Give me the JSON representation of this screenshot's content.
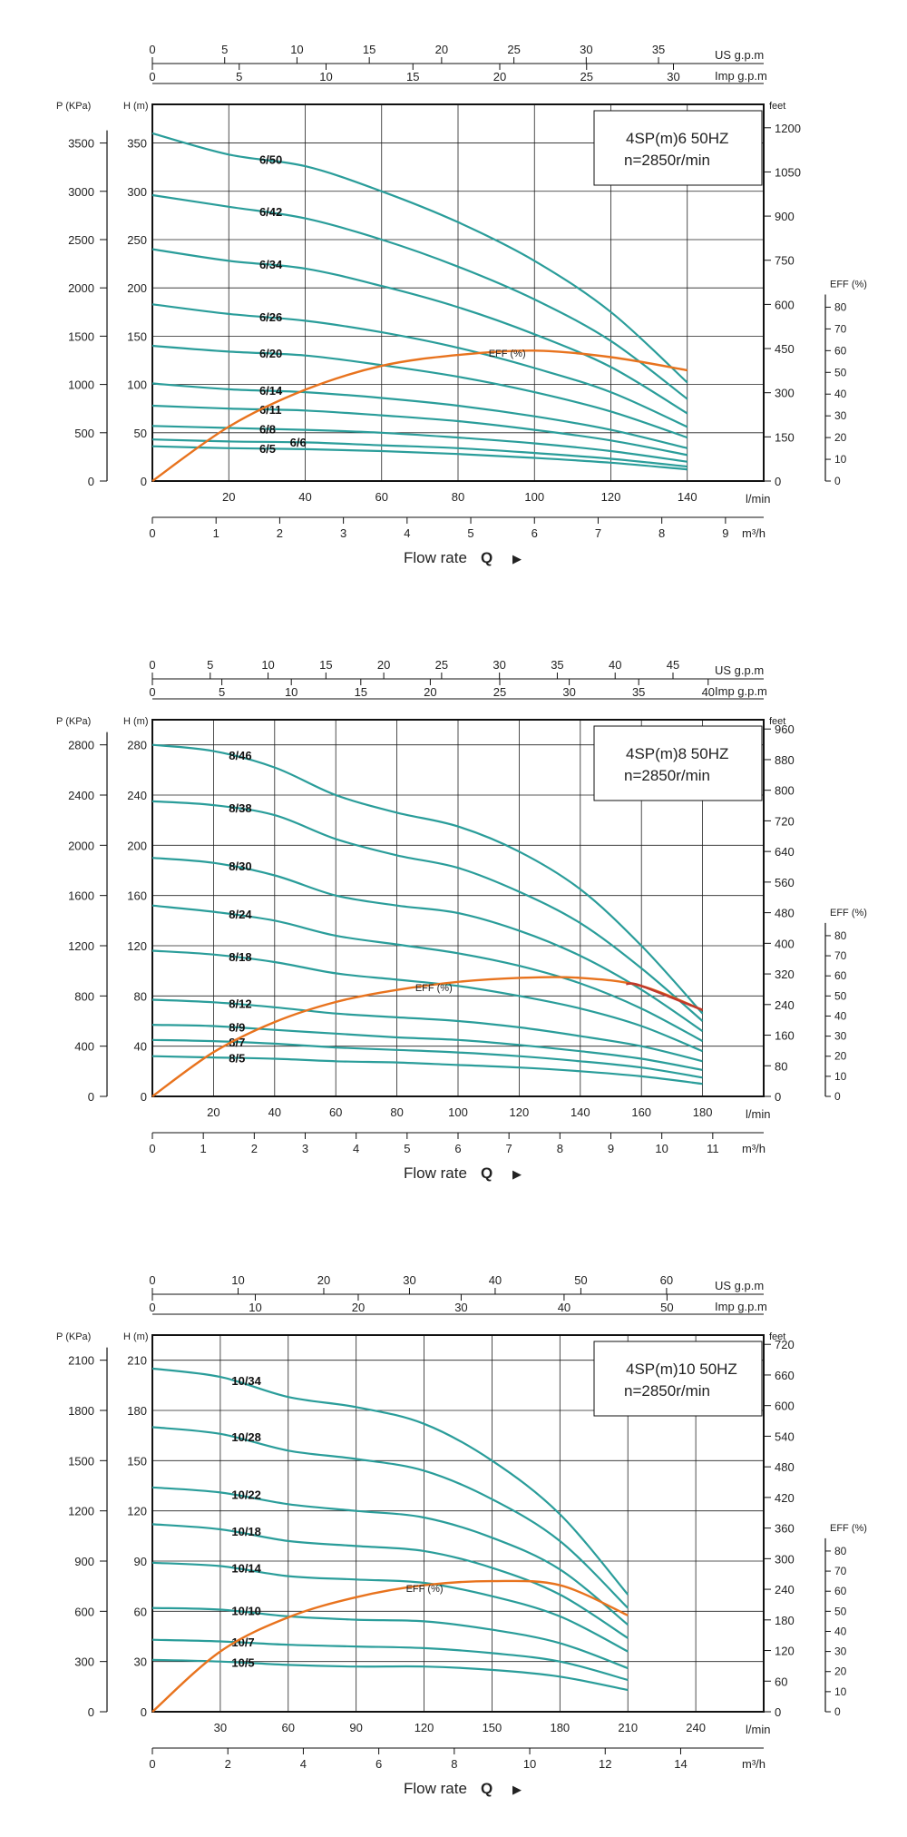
{
  "common": {
    "p_label": "P (KPa)",
    "h_label": "H (m)",
    "feet_label": "feet",
    "us_label": "US g.p.m",
    "imp_label": "Imp g.p.m",
    "lmin_label": "l/min",
    "m3h_label": "m³/h",
    "flow_label": "Flow rate",
    "flow_q": "Q",
    "flow_arrow": "▶",
    "eff_axis_label": "EFF (%)",
    "eff_curve_label": "EFF (%)",
    "eff_ticks": [
      "0",
      "10",
      "20",
      "30",
      "40",
      "50",
      "60",
      "70",
      "80"
    ],
    "colors": {
      "curve": "#2a9d9a",
      "eff": "#e8731e",
      "eff_hot": "#c0392b",
      "grid": "#222222",
      "frame": "#111111"
    }
  },
  "chart_data": [
    {
      "type": "line",
      "title": "4SP(m)6  50HZ",
      "subtitle": "n=2850r/min",
      "xlabel": "Flow rate Q",
      "ylabel": "H (m)",
      "xlim": [
        0,
        160
      ],
      "ylim": [
        0,
        390
      ],
      "x_major": [
        0,
        20,
        40,
        60,
        80,
        100,
        120,
        140,
        160
      ],
      "x_ticks": [
        "20",
        "40",
        "60",
        "80",
        "100",
        "120",
        "140"
      ],
      "x_tick_vals": [
        20,
        40,
        60,
        80,
        100,
        120,
        140
      ],
      "h_ticks": [
        "0",
        "50",
        "100",
        "150",
        "200",
        "250",
        "300",
        "350"
      ],
      "h_tick_vals": [
        0,
        50,
        100,
        150,
        200,
        250,
        300,
        350
      ],
      "h_grid": [
        0,
        50,
        100,
        150,
        200,
        250,
        300,
        350,
        390
      ],
      "p_ticks": [
        "0",
        "500",
        "1000",
        "1500",
        "2000",
        "2500",
        "3000",
        "3500"
      ],
      "p_tick_vals": [
        0,
        500,
        1000,
        1500,
        2000,
        2500,
        3000,
        3500
      ],
      "feet_ticks": [
        "0",
        "150",
        "300",
        "450",
        "600",
        "750",
        "900",
        "1050",
        "1200"
      ],
      "feet_tick_vals": [
        0,
        150,
        300,
        450,
        600,
        750,
        900,
        1050,
        1200
      ],
      "m3h_ticks": [
        "0",
        "1",
        "2",
        "3",
        "4",
        "5",
        "6",
        "7",
        "8",
        "9"
      ],
      "m3h_tick_vals": [
        0,
        1,
        2,
        3,
        4,
        5,
        6,
        7,
        8,
        9
      ],
      "us_ticks": [
        "0",
        "5",
        "10",
        "15",
        "20",
        "25",
        "30",
        "35"
      ],
      "us_tick_vals": [
        0,
        5,
        10,
        15,
        20,
        25,
        30,
        35
      ],
      "imp_ticks": [
        "0",
        "5",
        "10",
        "15",
        "20",
        "25",
        "30"
      ],
      "imp_tick_vals": [
        0,
        5,
        10,
        15,
        20,
        25,
        30
      ],
      "x": [
        0,
        20,
        40,
        60,
        80,
        100,
        120,
        140
      ],
      "series": [
        {
          "name": "6/50",
          "values": [
            360,
            338,
            326,
            300,
            268,
            228,
            175,
            102
          ],
          "label_x": 28
        },
        {
          "name": "6/42",
          "values": [
            296,
            284,
            272,
            250,
            222,
            188,
            145,
            85
          ],
          "label_x": 28
        },
        {
          "name": "6/34",
          "values": [
            240,
            228,
            220,
            202,
            180,
            152,
            118,
            70
          ],
          "label_x": 28
        },
        {
          "name": "6/26",
          "values": [
            183,
            173,
            166,
            154,
            138,
            117,
            92,
            56
          ],
          "label_x": 28
        },
        {
          "name": "6/20",
          "values": [
            140,
            134,
            130,
            120,
            108,
            92,
            72,
            45
          ],
          "label_x": 28
        },
        {
          "name": "6/14",
          "values": [
            101,
            95,
            92,
            86,
            78,
            67,
            53,
            34
          ],
          "label_x": 28
        },
        {
          "name": "6/11",
          "values": [
            78,
            75,
            73,
            68,
            62,
            53,
            42,
            27
          ],
          "label_x": 28
        },
        {
          "name": "6/8",
          "values": [
            57,
            55,
            53,
            50,
            45,
            39,
            31,
            20
          ],
          "label_x": 28
        },
        {
          "name": "6/6",
          "values": [
            43,
            41,
            40,
            37,
            34,
            29,
            23,
            15
          ],
          "label_x": 36
        },
        {
          "name": "6/5",
          "values": [
            36,
            34,
            33,
            31,
            28,
            24,
            19,
            12
          ],
          "label_x": 28
        }
      ],
      "eff": {
        "x": [
          0,
          20,
          40,
          60,
          80,
          100,
          120,
          140
        ],
        "values": [
          0,
          25,
          42,
          53,
          58,
          60,
          57,
          51
        ],
        "label_x": 88,
        "hot_from_x": null
      },
      "eff_map": {
        "zero_h": 0,
        "per10_h": 22.5,
        "axis_max": 80
      }
    },
    {
      "type": "line",
      "title": "4SP(m)8  50HZ",
      "subtitle": "n=2850r/min",
      "xlabel": "Flow rate Q",
      "ylabel": "H (m)",
      "xlim": [
        0,
        200
      ],
      "ylim": [
        0,
        300
      ],
      "x_major": [
        0,
        20,
        40,
        60,
        80,
        100,
        120,
        140,
        160,
        180,
        200
      ],
      "x_ticks": [
        "20",
        "40",
        "60",
        "80",
        "100",
        "120",
        "140",
        "160",
        "180"
      ],
      "x_tick_vals": [
        20,
        40,
        60,
        80,
        100,
        120,
        140,
        160,
        180
      ],
      "h_ticks": [
        "0",
        "40",
        "80",
        "120",
        "160",
        "200",
        "240",
        "280"
      ],
      "h_tick_vals": [
        0,
        40,
        80,
        120,
        160,
        200,
        240,
        280
      ],
      "h_grid": [
        0,
        40,
        80,
        120,
        160,
        200,
        240,
        280,
        300
      ],
      "p_ticks": [
        "0",
        "400",
        "800",
        "1200",
        "1600",
        "2000",
        "2400",
        "2800"
      ],
      "p_tick_vals": [
        0,
        400,
        800,
        1200,
        1600,
        2000,
        2400,
        2800
      ],
      "feet_ticks": [
        "0",
        "80",
        "160",
        "240",
        "320",
        "400",
        "480",
        "560",
        "640",
        "720",
        "800",
        "880",
        "960"
      ],
      "feet_tick_vals": [
        0,
        80,
        160,
        240,
        320,
        400,
        480,
        560,
        640,
        720,
        800,
        880,
        960
      ],
      "m3h_ticks": [
        "0",
        "1",
        "2",
        "3",
        "4",
        "5",
        "6",
        "7",
        "8",
        "9",
        "10",
        "11"
      ],
      "m3h_tick_vals": [
        0,
        1,
        2,
        3,
        4,
        5,
        6,
        7,
        8,
        9,
        10,
        11
      ],
      "us_ticks": [
        "0",
        "5",
        "10",
        "15",
        "20",
        "25",
        "30",
        "35",
        "40",
        "45"
      ],
      "us_tick_vals": [
        0,
        5,
        10,
        15,
        20,
        25,
        30,
        35,
        40,
        45
      ],
      "imp_ticks": [
        "0",
        "5",
        "10",
        "15",
        "20",
        "25",
        "30",
        "35",
        "40"
      ],
      "imp_tick_vals": [
        0,
        5,
        10,
        15,
        20,
        25,
        30,
        35,
        40
      ],
      "x": [
        0,
        20,
        40,
        60,
        80,
        100,
        120,
        140,
        160,
        180
      ],
      "series": [
        {
          "name": "8/46",
          "values": [
            280,
            275,
            262,
            240,
            226,
            215,
            195,
            165,
            120,
            66
          ],
          "label_x": 25
        },
        {
          "name": "8/38",
          "values": [
            235,
            232,
            224,
            205,
            192,
            182,
            163,
            138,
            102,
            60
          ],
          "label_x": 25
        },
        {
          "name": "8/30",
          "values": [
            190,
            186,
            176,
            160,
            152,
            146,
            132,
            112,
            85,
            52
          ],
          "label_x": 25
        },
        {
          "name": "8/24",
          "values": [
            152,
            147,
            140,
            128,
            121,
            114,
            104,
            90,
            70,
            44
          ],
          "label_x": 25
        },
        {
          "name": "8/18",
          "values": [
            116,
            113,
            107,
            98,
            93,
            88,
            80,
            70,
            56,
            36
          ],
          "label_x": 25
        },
        {
          "name": "8/12",
          "values": [
            77,
            75,
            71,
            66,
            63,
            60,
            55,
            48,
            40,
            28
          ],
          "label_x": 25
        },
        {
          "name": "8/9",
          "values": [
            57,
            56,
            53,
            50,
            47,
            45,
            41,
            36,
            30,
            21
          ],
          "label_x": 25
        },
        {
          "name": "8/7",
          "values": [
            45,
            44,
            42,
            39,
            37,
            35,
            32,
            28,
            23,
            15
          ],
          "label_x": 25
        },
        {
          "name": "8/5",
          "values": [
            32,
            31,
            30,
            28,
            27,
            25,
            23,
            20,
            16,
            10
          ],
          "label_x": 25
        }
      ],
      "eff": {
        "x": [
          0,
          20,
          40,
          60,
          80,
          100,
          120,
          140,
          160,
          180
        ],
        "values": [
          0,
          22,
          37,
          47,
          53,
          57,
          59,
          59,
          55,
          43
        ],
        "label_x": 86,
        "hot_from_x": 155
      },
      "eff_map": {
        "zero_h": 0,
        "per10_h": 16,
        "axis_max": 80
      }
    },
    {
      "type": "line",
      "title": "4SP(m)10  50HZ",
      "subtitle": "n=2850r/min",
      "xlabel": "Flow rate Q",
      "ylabel": "H (m)",
      "xlim": [
        0,
        270
      ],
      "ylim": [
        0,
        225
      ],
      "x_major": [
        0,
        30,
        60,
        90,
        120,
        150,
        180,
        210,
        240,
        270
      ],
      "x_ticks": [
        "30",
        "60",
        "90",
        "120",
        "150",
        "180",
        "210",
        "240"
      ],
      "x_tick_vals": [
        30,
        60,
        90,
        120,
        150,
        180,
        210,
        240
      ],
      "h_ticks": [
        "0",
        "30",
        "60",
        "90",
        "120",
        "150",
        "180",
        "210"
      ],
      "h_tick_vals": [
        0,
        30,
        60,
        90,
        120,
        150,
        180,
        210
      ],
      "h_grid": [
        0,
        30,
        60,
        90,
        120,
        150,
        180,
        210,
        225
      ],
      "p_ticks": [
        "0",
        "300",
        "600",
        "900",
        "1200",
        "1500",
        "1800",
        "2100"
      ],
      "p_tick_vals": [
        0,
        300,
        600,
        900,
        1200,
        1500,
        1800,
        2100
      ],
      "feet_ticks": [
        "0",
        "60",
        "120",
        "180",
        "240",
        "300",
        "360",
        "420",
        "480",
        "540",
        "600",
        "660",
        "720"
      ],
      "feet_tick_vals": [
        0,
        60,
        120,
        180,
        240,
        300,
        360,
        420,
        480,
        540,
        600,
        660,
        720
      ],
      "m3h_ticks": [
        "0",
        "2",
        "4",
        "6",
        "8",
        "10",
        "12",
        "14"
      ],
      "m3h_tick_vals": [
        0,
        2,
        4,
        6,
        8,
        10,
        12,
        14
      ],
      "us_ticks": [
        "0",
        "10",
        "20",
        "30",
        "40",
        "50",
        "60"
      ],
      "us_tick_vals": [
        0,
        10,
        20,
        30,
        40,
        50,
        60
      ],
      "imp_ticks": [
        "0",
        "10",
        "20",
        "30",
        "40",
        "50"
      ],
      "imp_tick_vals": [
        0,
        10,
        20,
        30,
        40,
        50
      ],
      "x": [
        0,
        30,
        60,
        90,
        120,
        150,
        180,
        210
      ],
      "series": [
        {
          "name": "10/34",
          "values": [
            205,
            200,
            188,
            182,
            172,
            150,
            118,
            70
          ],
          "label_x": 35
        },
        {
          "name": "10/28",
          "values": [
            170,
            166,
            156,
            151,
            144,
            127,
            102,
            62
          ],
          "label_x": 35
        },
        {
          "name": "10/22",
          "values": [
            134,
            131,
            124,
            120,
            116,
            104,
            85,
            52
          ],
          "label_x": 35
        },
        {
          "name": "10/18",
          "values": [
            112,
            109,
            102,
            99,
            96,
            86,
            70,
            44
          ],
          "label_x": 35
        },
        {
          "name": "10/14",
          "values": [
            89,
            87,
            81,
            79,
            77,
            69,
            57,
            36
          ],
          "label_x": 35
        },
        {
          "name": "10/10",
          "values": [
            62,
            61,
            57,
            55,
            54,
            49,
            41,
            26
          ],
          "label_x": 35
        },
        {
          "name": "10/7",
          "values": [
            43,
            42,
            40,
            39,
            38,
            35,
            30,
            19
          ],
          "label_x": 35
        },
        {
          "name": "10/5",
          "values": [
            31,
            30,
            28,
            27,
            27,
            25,
            21,
            13
          ],
          "label_x": 35
        }
      ],
      "eff": {
        "x": [
          0,
          30,
          60,
          90,
          120,
          150,
          180,
          210
        ],
        "values": [
          0,
          30,
          47,
          57,
          63,
          65,
          63,
          48
        ],
        "label_x": 112,
        "hot_from_x": null
      },
      "eff_map": {
        "zero_h": 0,
        "per10_h": 12,
        "axis_max": 80
      }
    }
  ]
}
